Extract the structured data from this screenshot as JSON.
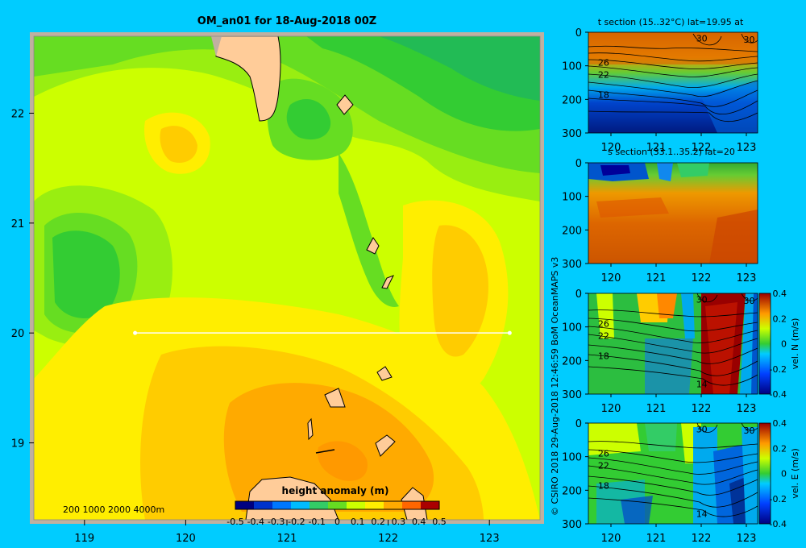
{
  "chart_data": [
    {
      "type": "heatmap",
      "title": "OM_an01 for 18-Aug-2018 00Z",
      "x_ticks": [
        119,
        120,
        121,
        122,
        123
      ],
      "y_ticks": [
        19,
        20,
        21,
        22
      ],
      "xlim": [
        118.5,
        123.5
      ],
      "ylim": [
        18.3,
        22.7
      ],
      "section_line": {
        "lat": 20,
        "lon_start": 119.5,
        "lon_end": 123.2
      },
      "depth_contours_label": "200  1000  2000  4000m",
      "colorbar": {
        "label": "height anomaly  (m)",
        "ticks": [
          "-0.5",
          "-0.4",
          "-0.3",
          "-0.2",
          "-0.1",
          "0",
          "0.1",
          "0.2",
          "0.3",
          "0.4",
          "0.5"
        ],
        "range": [
          -0.5,
          0.5
        ]
      }
    },
    {
      "type": "heatmap",
      "title": "t section (15..32°C) lat=19.95 at",
      "x_ticks": [
        120,
        121,
        122,
        123
      ],
      "y_ticks": [
        0,
        100,
        200,
        300
      ],
      "contour_labels": [
        "30",
        "30",
        "26",
        "22",
        "18"
      ]
    },
    {
      "type": "heatmap",
      "title": "s section (33.1..35.2) lat=20",
      "x_ticks": [
        120,
        121,
        122,
        123
      ],
      "y_ticks": [
        0,
        100,
        200,
        300
      ]
    },
    {
      "type": "heatmap",
      "title": "",
      "x_ticks": [
        120,
        121,
        122,
        123
      ],
      "y_ticks": [
        0,
        100,
        200,
        300
      ],
      "contour_labels": [
        "30",
        "30",
        "26",
        "22",
        "18",
        "14"
      ],
      "colorbar": {
        "label": "vel. N (m/s)",
        "ticks": [
          "0.4",
          "0.2",
          "0",
          "-0.2",
          "-0.4"
        ],
        "range": [
          -0.4,
          0.4
        ]
      }
    },
    {
      "type": "heatmap",
      "title": "",
      "x_ticks": [
        120,
        121,
        122,
        123
      ],
      "y_ticks": [
        0,
        100,
        200,
        300
      ],
      "contour_labels": [
        "30",
        "30",
        "26",
        "22",
        "18",
        "14"
      ],
      "colorbar": {
        "label": "vel. E (m/s)",
        "ticks": [
          "0.4",
          "0.2",
          "0",
          "-0.2",
          "-0.4"
        ],
        "range": [
          -0.4,
          0.4
        ]
      }
    }
  ],
  "credit": "© CSIRO 2018   29-Aug-2018 12:46:59 BoM OceanMAPS v3",
  "colors": {
    "background": "#00ccff",
    "land": "#ffcc99",
    "frame": "#c0b0a0"
  }
}
